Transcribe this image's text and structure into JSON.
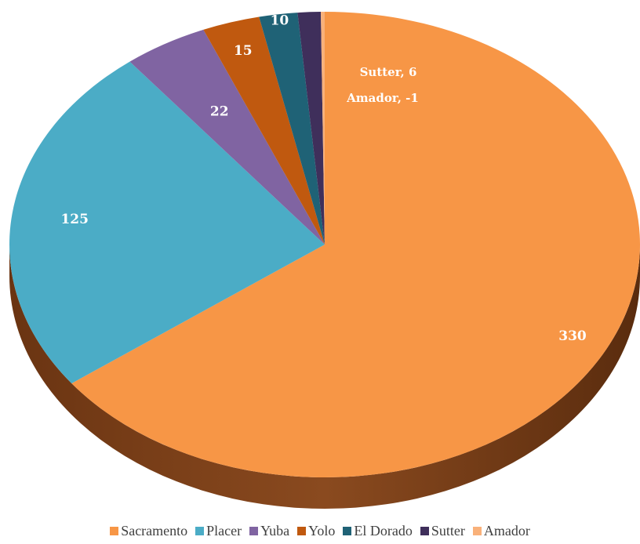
{
  "chart_data": {
    "type": "pie",
    "style": "3d",
    "categories": [
      "Sacramento",
      "Placer",
      "Yuba",
      "Yolo",
      "El Dorado",
      "Sutter",
      "Amador"
    ],
    "values": [
      330,
      125,
      22,
      15,
      10,
      6,
      -1
    ],
    "data_labels": [
      "330",
      "125",
      "22",
      "15",
      "10",
      "Sutter, 6",
      "Amador, -1"
    ],
    "colors": [
      "#F79646",
      "#4BACC6",
      "#8064A2",
      "#C0590F",
      "#1F6276",
      "#3F2F5B",
      "#F9B17A"
    ],
    "legend_position": "bottom"
  }
}
